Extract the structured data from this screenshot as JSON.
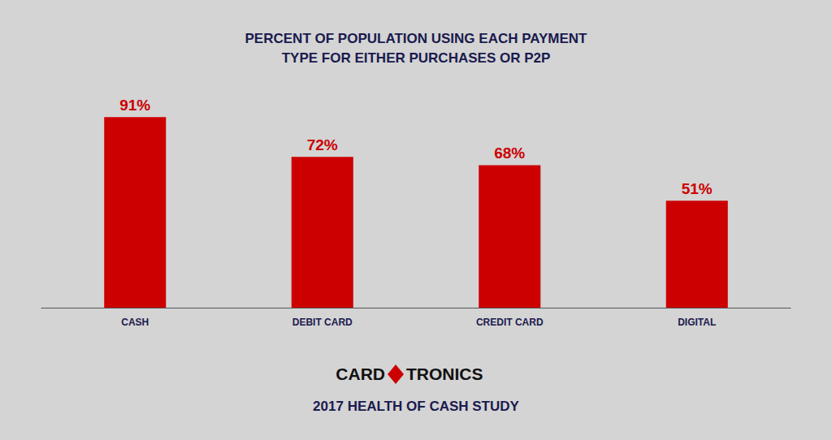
{
  "chart_data": {
    "type": "bar",
    "title": "PERCENT OF POPULATION USING EACH PAYMENT\nTYPE FOR EITHER PURCHASES OR P2P",
    "subtitle": "2017 HEALTH OF CASH STUDY",
    "annotations": [
      "CARD",
      "TRONICS"
    ],
    "categories": [
      "CASH",
      "DEBIT CARD",
      "CREDIT CARD",
      "DIGITAL"
    ],
    "values": [
      91,
      72,
      68,
      51
    ],
    "value_labels": [
      "91%",
      "72%",
      "68%",
      "51%"
    ],
    "color": "#CC0000",
    "ylim": [
      0,
      105
    ],
    "grid": false,
    "data_labels": true,
    "tick_labels": "x"
  }
}
